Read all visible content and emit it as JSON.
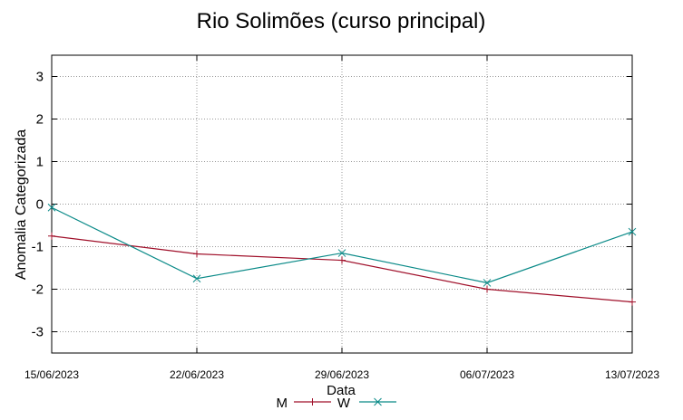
{
  "chart_data": {
    "type": "line",
    "title": "Rio Solimões (curso principal)",
    "xlabel": "Data",
    "ylabel": "Anomalia Categorizada",
    "x": [
      "15/06/2023",
      "22/06/2023",
      "29/06/2023",
      "06/07/2023",
      "13/07/2023"
    ],
    "ylim": [
      -3.5,
      3.5
    ],
    "yticks": [
      -3,
      -2,
      -1,
      0,
      1,
      2,
      3
    ],
    "grid": true,
    "legend_position": "bottom",
    "series": [
      {
        "name": "M",
        "color": "#a0102a",
        "marker": "plus",
        "values": [
          -0.75,
          -1.17,
          -1.32,
          -2.0,
          -2.3
        ]
      },
      {
        "name": "W",
        "color": "#0a8a88",
        "marker": "cross",
        "values": [
          -0.08,
          -1.75,
          -1.15,
          -1.85,
          -0.65
        ]
      }
    ]
  }
}
